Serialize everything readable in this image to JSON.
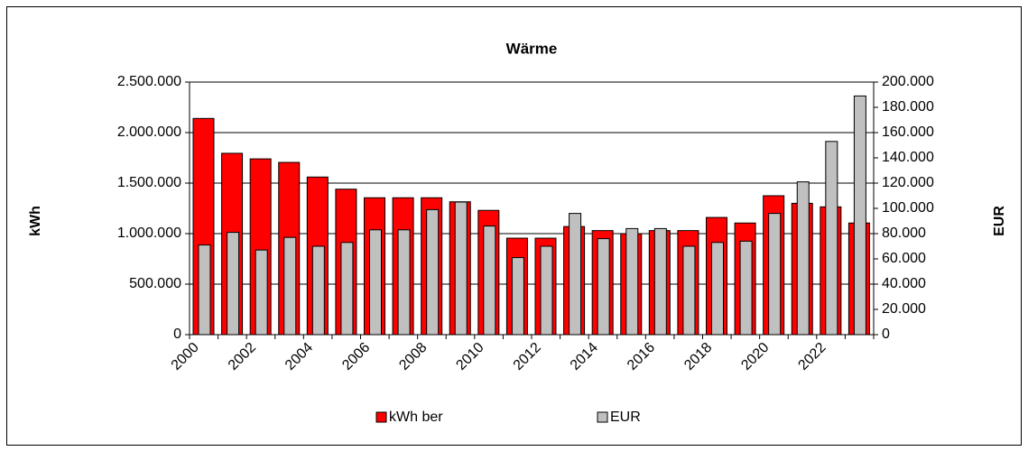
{
  "chart_data": {
    "type": "bar",
    "title": "Wärme",
    "ylabel": "kWh",
    "y2label": "EUR",
    "categories": [
      "2000",
      null,
      "2002",
      null,
      "2004",
      null,
      "2006",
      null,
      "2008",
      null,
      "2010",
      null,
      "2012",
      null,
      "2014",
      null,
      "2016",
      null,
      "2018",
      null,
      "2020",
      null,
      "2022",
      null
    ],
    "series": [
      {
        "name": "kWh ber",
        "color": "#ff0000",
        "values": [
          2140000,
          1795000,
          1740000,
          1705000,
          1560000,
          1440000,
          1355000,
          1355000,
          1355000,
          1315000,
          1230000,
          955000,
          955000,
          1070000,
          1030000,
          1000000,
          1030000,
          1030000,
          1160000,
          1105000,
          1375000,
          1300000,
          1265000,
          1105000
        ]
      },
      {
        "name": "EUR",
        "color": "#c0c0c0",
        "axis": "y2",
        "values": [
          71000,
          81000,
          67000,
          77000,
          70000,
          73000,
          83000,
          83000,
          99000,
          105000,
          86000,
          61000,
          70000,
          96000,
          76000,
          84000,
          84000,
          70000,
          73000,
          74000,
          96000,
          121000,
          153000,
          189000
        ]
      }
    ],
    "ylim": [
      0,
      2500000
    ],
    "yticks": [
      0,
      {
        "value": 500000,
        "label": "500.000"
      },
      {
        "value": 1000000,
        "label": "1.000.000"
      },
      {
        "value": 1500000,
        "label": "1.500.000"
      },
      {
        "value": 2000000,
        "label": "2.000.000"
      },
      {
        "value": 2500000,
        "label": "2.500.000"
      }
    ],
    "y2lim": [
      0,
      200000
    ],
    "y2ticks": [
      0,
      {
        "value": 20000,
        "label": "20.000"
      },
      {
        "value": 40000,
        "label": "40.000"
      },
      {
        "value": 60000,
        "label": "60.000"
      },
      {
        "value": 80000,
        "label": "80.000"
      },
      {
        "value": 100000,
        "label": "100.000"
      },
      {
        "value": 120000,
        "label": "120.000"
      },
      {
        "value": 140000,
        "label": "140.000"
      },
      {
        "value": 160000,
        "label": "160.000"
      },
      {
        "value": 180000,
        "label": "180.000"
      },
      {
        "value": 200000,
        "label": "200.000"
      }
    ],
    "grid": true,
    "legend": "bottom"
  }
}
